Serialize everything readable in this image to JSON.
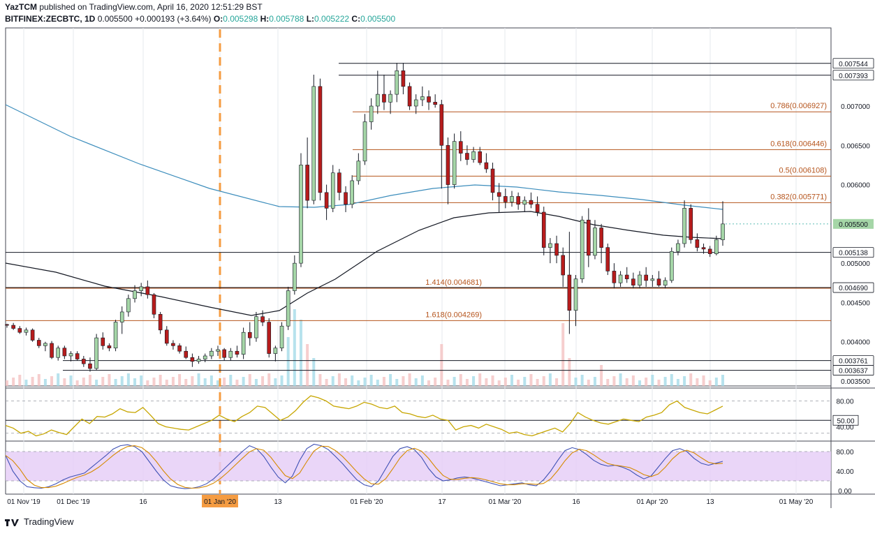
{
  "header": {
    "publisher": "YazTCM",
    "published_text": "published on TradingView.com, April 16, 2020 12:51:29 BST",
    "symbol": "BITFINEX:ZECBTC, 1D",
    "last": "0.005500",
    "change": "+0.000193 (+3.64%)",
    "o_label": "O:",
    "o": "0.005298",
    "h_label": "H:",
    "h": "0.005788",
    "l_label": "L:",
    "l": "0.005222",
    "c_label": "C:",
    "c": "0.005500"
  },
  "footer": {
    "brand": "TradingView"
  },
  "colors": {
    "up": "#a5d6a7",
    "down": "#b71c1c",
    "fib": "#b5541c",
    "ma200": "#3c8dbc",
    "ma100": "#131722",
    "rsi": "#c7a600",
    "stoch_k": "#3f51b5",
    "stoch_d": "#d68a00",
    "stoch_band": "#e6cff7",
    "event": "#f59c42"
  },
  "chart_data": {
    "type": "candlestick",
    "price_axis": {
      "min": 0.0035,
      "max": 0.0077,
      "ticks": [
        "0.007000",
        "0.006500",
        "0.006000",
        "0.005500",
        "0.005000",
        "0.004500",
        "0.004000",
        "0.003500"
      ]
    },
    "x_ticks": [
      "01 Nov '19",
      "01 Dec '19",
      "16",
      "01 Jan '20",
      "13",
      "01 Feb '20",
      "17",
      "01 Mar '20",
      "16",
      "01 Apr '20",
      "13",
      "01 May '20"
    ],
    "highlighted_x_tick": "01 Jan '20",
    "horizontal_levels": [
      {
        "value": 0.007544,
        "label": "0.007544"
      },
      {
        "value": 0.007393,
        "label": "0.007393"
      },
      {
        "value": 0.005138,
        "label": "0.005138"
      },
      {
        "value": 0.00469,
        "label": "0.004690"
      },
      {
        "value": 0.003761,
        "label": "0.003761"
      },
      {
        "value": 0.003637,
        "label": "0.003637"
      }
    ],
    "current_price": {
      "value": 0.0055,
      "label": "0.005500"
    },
    "fib_levels": [
      {
        "value": 0.006927,
        "label": "0.786(0.006927)"
      },
      {
        "value": 0.006446,
        "label": "0.618(0.006446)"
      },
      {
        "value": 0.006108,
        "label": "0.5(0.006108)"
      },
      {
        "value": 0.005771,
        "label": "0.382(0.005771)"
      },
      {
        "value": 0.004681,
        "label": "1.414(0.004681)"
      },
      {
        "value": 0.004269,
        "label": "1.618(0.004269)"
      }
    ],
    "rsi": {
      "ticks": [
        "80.00",
        "40.00"
      ],
      "current_label": "50.00",
      "values": [
        42,
        38,
        30,
        33,
        26,
        29,
        35,
        31,
        28,
        40,
        52,
        45,
        56,
        55,
        60,
        68,
        63,
        62,
        70,
        58,
        45,
        40,
        38,
        36,
        35,
        40,
        45,
        50,
        58,
        52,
        48,
        56,
        62,
        72,
        70,
        60,
        50,
        55,
        65,
        78,
        88,
        85,
        80,
        72,
        70,
        68,
        72,
        78,
        75,
        70,
        68,
        72,
        62,
        60,
        56,
        54,
        58,
        52,
        50,
        35,
        40,
        42,
        38,
        44,
        40,
        36,
        30,
        32,
        28,
        26,
        30,
        34,
        38,
        32,
        45,
        62,
        55,
        50,
        46,
        44,
        48,
        52,
        50,
        48,
        55,
        58,
        62,
        74,
        80,
        70,
        66,
        62,
        60,
        66,
        72
      ]
    },
    "stoch": {
      "ticks": [
        "80.00",
        "40.00",
        "0.00"
      ],
      "k": [
        72,
        40,
        20,
        8,
        6,
        5,
        8,
        14,
        22,
        28,
        32,
        36,
        48,
        60,
        72,
        85,
        92,
        94,
        90,
        80,
        60,
        40,
        22,
        10,
        6,
        4,
        5,
        8,
        14,
        24,
        38,
        52,
        66,
        80,
        92,
        86,
        70,
        48,
        28,
        16,
        30,
        62,
        86,
        95,
        92,
        84,
        70,
        55,
        38,
        22,
        12,
        8,
        20,
        45,
        70,
        86,
        90,
        84,
        68,
        45,
        28,
        20,
        22,
        26,
        28,
        26,
        22,
        18,
        14,
        10,
        12,
        14,
        16,
        12,
        10,
        22,
        40,
        62,
        82,
        88,
        84,
        74,
        62,
        54,
        50,
        52,
        48,
        42,
        32,
        24,
        30,
        48,
        66,
        82,
        86,
        80,
        66,
        56,
        52,
        56,
        60
      ]
    },
    "volume_note": "volume bars along bottom of price pane",
    "candles": [
      [
        0.00422,
        0.00423,
        0.00418,
        0.00421
      ],
      [
        0.00421,
        0.00424,
        0.00415,
        0.00417
      ],
      [
        0.00417,
        0.0042,
        0.0041,
        0.00412
      ],
      [
        0.00412,
        0.00418,
        0.00408,
        0.00415
      ],
      [
        0.00415,
        0.00417,
        0.004,
        0.00402
      ],
      [
        0.00402,
        0.00405,
        0.00392,
        0.00395
      ],
      [
        0.00395,
        0.004,
        0.00388,
        0.00398
      ],
      [
        0.00398,
        0.00401,
        0.00378,
        0.0038
      ],
      [
        0.0038,
        0.00395,
        0.00376,
        0.00392
      ],
      [
        0.00392,
        0.00395,
        0.00378,
        0.00382
      ],
      [
        0.00382,
        0.00388,
        0.00375,
        0.00385
      ],
      [
        0.00385,
        0.00388,
        0.00376,
        0.00378
      ],
      [
        0.00378,
        0.00382,
        0.00368,
        0.00372
      ],
      [
        0.00372,
        0.0038,
        0.00362,
        0.00366
      ],
      [
        0.00366,
        0.0041,
        0.00364,
        0.00405
      ],
      [
        0.00405,
        0.00412,
        0.0039,
        0.00395
      ],
      [
        0.00395,
        0.00398,
        0.00388,
        0.00392
      ],
      [
        0.00392,
        0.00428,
        0.00388,
        0.00425
      ],
      [
        0.00425,
        0.00445,
        0.0041,
        0.00438
      ],
      [
        0.00438,
        0.0046,
        0.00432,
        0.00455
      ],
      [
        0.00455,
        0.00472,
        0.0045,
        0.00465
      ],
      [
        0.00465,
        0.00475,
        0.00458,
        0.0047
      ],
      [
        0.0047,
        0.00478,
        0.00455,
        0.0046
      ],
      [
        0.0046,
        0.00462,
        0.0043,
        0.00435
      ],
      [
        0.00435,
        0.00438,
        0.0041,
        0.00415
      ],
      [
        0.00415,
        0.0042,
        0.00395,
        0.00398
      ],
      [
        0.00398,
        0.00402,
        0.0039,
        0.00395
      ],
      [
        0.00395,
        0.00398,
        0.00385,
        0.00388
      ],
      [
        0.00388,
        0.00394,
        0.00378,
        0.0038
      ],
      [
        0.0038,
        0.00385,
        0.00368,
        0.00375
      ],
      [
        0.00375,
        0.00382,
        0.00372,
        0.00378
      ],
      [
        0.00378,
        0.00385,
        0.00374,
        0.00382
      ],
      [
        0.00382,
        0.00392,
        0.00378,
        0.00388
      ],
      [
        0.00388,
        0.00395,
        0.00382,
        0.0039
      ],
      [
        0.0039,
        0.00392,
        0.00376,
        0.0038
      ],
      [
        0.0038,
        0.00392,
        0.00376,
        0.00388
      ],
      [
        0.00388,
        0.00395,
        0.0038,
        0.00384
      ],
      [
        0.00384,
        0.00418,
        0.00378,
        0.00412
      ],
      [
        0.00412,
        0.00425,
        0.00395,
        0.00405
      ],
      [
        0.00405,
        0.00438,
        0.004,
        0.00432
      ],
      [
        0.00432,
        0.0044,
        0.0042,
        0.00425
      ],
      [
        0.00425,
        0.0043,
        0.0038,
        0.00385
      ],
      [
        0.00385,
        0.00395,
        0.00375,
        0.00392
      ],
      [
        0.00392,
        0.00425,
        0.00388,
        0.0042
      ],
      [
        0.0042,
        0.0047,
        0.00415,
        0.00465
      ],
      [
        0.00465,
        0.0051,
        0.0046,
        0.005
      ],
      [
        0.005,
        0.0064,
        0.00495,
        0.00625
      ],
      [
        0.00625,
        0.0066,
        0.0057,
        0.0058
      ],
      [
        0.0058,
        0.0074,
        0.00575,
        0.00725
      ],
      [
        0.00725,
        0.00735,
        0.0058,
        0.0059
      ],
      [
        0.0059,
        0.006,
        0.00555,
        0.0057
      ],
      [
        0.0057,
        0.00625,
        0.00565,
        0.00615
      ],
      [
        0.00615,
        0.0062,
        0.0058,
        0.0059
      ],
      [
        0.0059,
        0.00598,
        0.00565,
        0.00575
      ],
      [
        0.00575,
        0.00612,
        0.0057,
        0.00605
      ],
      [
        0.00605,
        0.0064,
        0.006,
        0.0063
      ],
      [
        0.0063,
        0.0069,
        0.00625,
        0.0068
      ],
      [
        0.0068,
        0.0071,
        0.0067,
        0.007
      ],
      [
        0.007,
        0.00745,
        0.0069,
        0.00715
      ],
      [
        0.00715,
        0.0074,
        0.00695,
        0.00705
      ],
      [
        0.00705,
        0.0072,
        0.0069,
        0.00715
      ],
      [
        0.00715,
        0.00755,
        0.00705,
        0.00745
      ],
      [
        0.00745,
        0.00755,
        0.00715,
        0.00725
      ],
      [
        0.00725,
        0.0073,
        0.00695,
        0.007
      ],
      [
        0.007,
        0.00715,
        0.0069,
        0.00708
      ],
      [
        0.00708,
        0.00725,
        0.007,
        0.00712
      ],
      [
        0.00712,
        0.0072,
        0.00695,
        0.00705
      ],
      [
        0.00705,
        0.00715,
        0.00698,
        0.00702
      ],
      [
        0.00702,
        0.00708,
        0.00595,
        0.0065
      ],
      [
        0.0065,
        0.0066,
        0.00575,
        0.006
      ],
      [
        0.006,
        0.00665,
        0.00595,
        0.00655
      ],
      [
        0.00655,
        0.00668,
        0.0063,
        0.0064
      ],
      [
        0.0064,
        0.0065,
        0.00625,
        0.00632
      ],
      [
        0.00632,
        0.00648,
        0.00628,
        0.00642
      ],
      [
        0.00642,
        0.00648,
        0.00625,
        0.00628
      ],
      [
        0.00628,
        0.0064,
        0.00615,
        0.0062
      ],
      [
        0.0062,
        0.00628,
        0.0058,
        0.0059
      ],
      [
        0.0059,
        0.00602,
        0.00565,
        0.00585
      ],
      [
        0.00585,
        0.00595,
        0.0057,
        0.00578
      ],
      [
        0.00578,
        0.00592,
        0.00572,
        0.00585
      ],
      [
        0.00585,
        0.0059,
        0.00568,
        0.00575
      ],
      [
        0.00575,
        0.00585,
        0.00565,
        0.0058
      ],
      [
        0.0058,
        0.0059,
        0.0057,
        0.00575
      ],
      [
        0.00575,
        0.00585,
        0.0056,
        0.00565
      ],
      [
        0.00565,
        0.00572,
        0.0051,
        0.0052
      ],
      [
        0.0052,
        0.00532,
        0.005,
        0.00525
      ],
      [
        0.00525,
        0.00535,
        0.005,
        0.0051
      ],
      [
        0.0051,
        0.0052,
        0.0047,
        0.00485
      ],
      [
        0.00485,
        0.0054,
        0.0041,
        0.0044
      ],
      [
        0.0044,
        0.00485,
        0.0042,
        0.0048
      ],
      [
        0.0048,
        0.0056,
        0.00475,
        0.00555
      ],
      [
        0.00555,
        0.0057,
        0.00495,
        0.0051
      ],
      [
        0.0051,
        0.00555,
        0.00505,
        0.00545
      ],
      [
        0.00545,
        0.0055,
        0.005,
        0.0052
      ],
      [
        0.0052,
        0.00525,
        0.00485,
        0.0049
      ],
      [
        0.0049,
        0.005,
        0.00468,
        0.00475
      ],
      [
        0.00475,
        0.0049,
        0.0047,
        0.00485
      ],
      [
        0.00485,
        0.00495,
        0.00475,
        0.0048
      ],
      [
        0.0048,
        0.00488,
        0.00468,
        0.00472
      ],
      [
        0.00472,
        0.0049,
        0.00468,
        0.00485
      ],
      [
        0.00485,
        0.00495,
        0.0047,
        0.00478
      ],
      [
        0.00478,
        0.00485,
        0.0047,
        0.0048
      ],
      [
        0.0048,
        0.0049,
        0.0047,
        0.00472
      ],
      [
        0.00472,
        0.00482,
        0.00468,
        0.00478
      ],
      [
        0.00478,
        0.0052,
        0.00475,
        0.00515
      ],
      [
        0.00515,
        0.0053,
        0.0051,
        0.00525
      ],
      [
        0.00525,
        0.0058,
        0.0052,
        0.0057
      ],
      [
        0.0057,
        0.00575,
        0.00525,
        0.0053
      ],
      [
        0.0053,
        0.00538,
        0.00515,
        0.0052
      ],
      [
        0.0052,
        0.00525,
        0.00512,
        0.00518
      ],
      [
        0.00518,
        0.00522,
        0.00508,
        0.00512
      ],
      [
        0.00512,
        0.00535,
        0.0051,
        0.0053
      ],
      [
        0.005298,
        0.005788,
        0.005222,
        0.0055
      ]
    ]
  }
}
